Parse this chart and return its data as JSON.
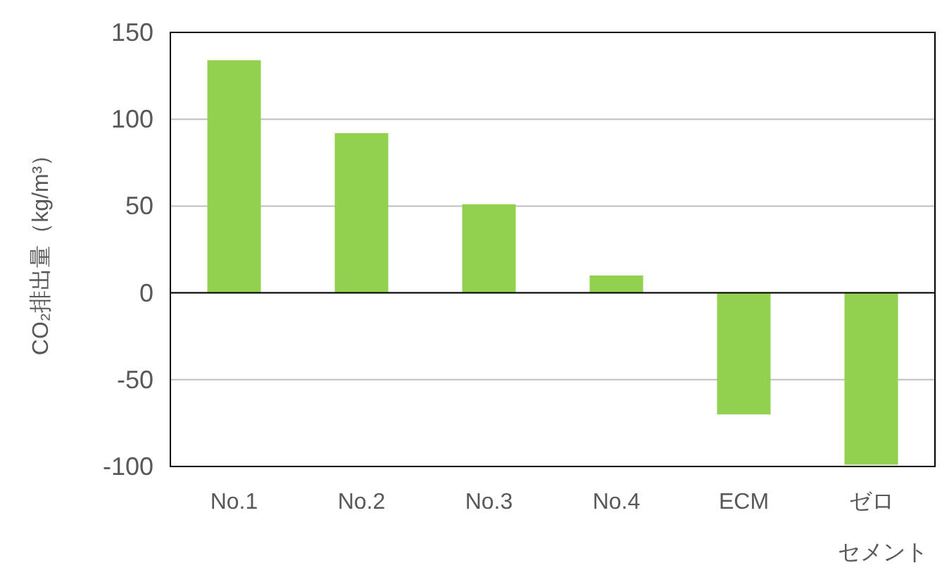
{
  "chart_data": {
    "type": "bar",
    "ylabel": "CO₂排出量（kg/m³）",
    "categories": [
      "No.1",
      "No.2",
      "No.3",
      "No.4",
      "ECM",
      "ゼロセメント"
    ],
    "series": [
      {
        "color": "#92d050",
        "values": [
          134,
          92,
          51,
          10,
          -70,
          -99
        ]
      }
    ],
    "ylim": [
      -100,
      150
    ],
    "yticks": [
      -100,
      -50,
      0,
      50,
      100,
      150
    ],
    "grid": "y"
  }
}
